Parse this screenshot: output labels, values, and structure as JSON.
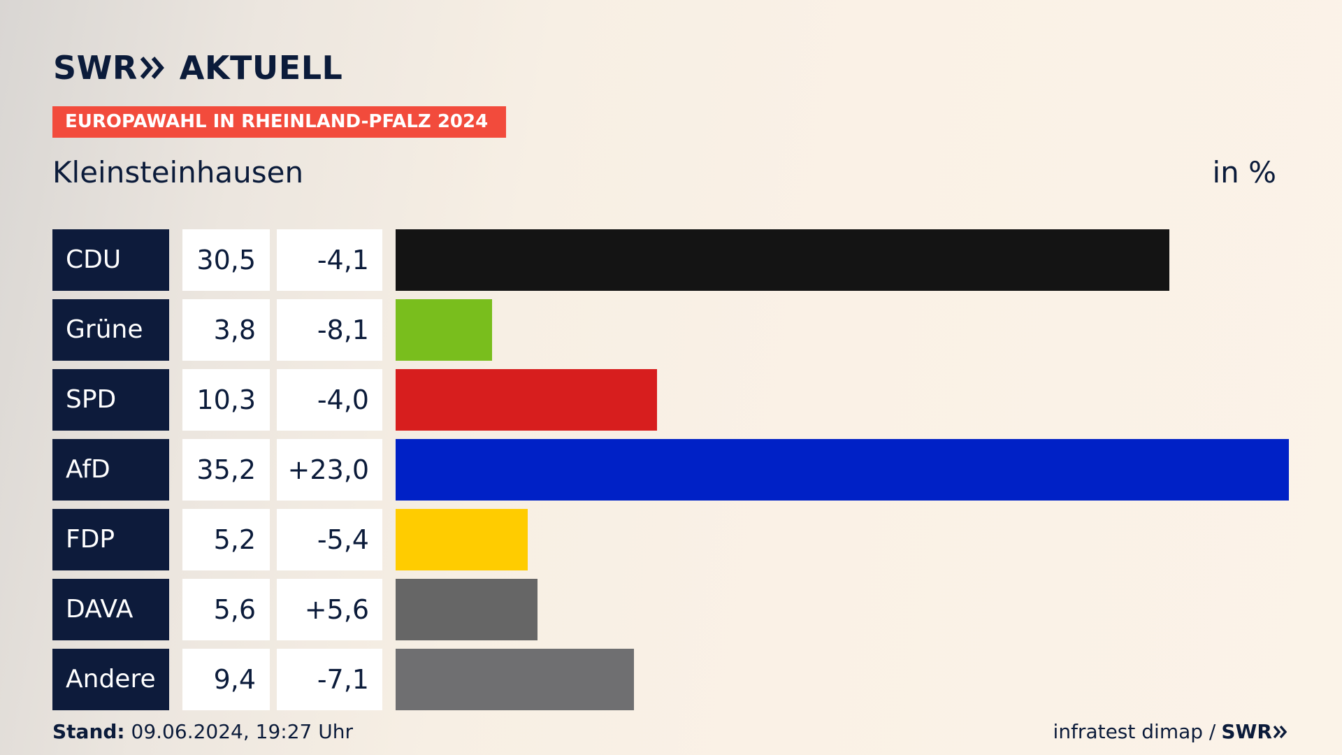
{
  "brand": {
    "name_left": "SWR",
    "name_right": "AKTUELL",
    "footer_logo": "SWR"
  },
  "header": {
    "kicker": "EUROPAWAHL IN RHEINLAND-PFALZ 2024",
    "place": "Kleinsteinhausen",
    "unit": "in %"
  },
  "footer": {
    "stand_label": "Stand:",
    "stand_value": "09.06.2024, 19:27 Uhr",
    "source": "infratest dimap /"
  },
  "colors": {
    "kicker": "#f24b3c",
    "party_label_bg": "#0d1b3b",
    "text": "#0b1b3a"
  },
  "chart_data": {
    "type": "bar",
    "orientation": "horizontal",
    "categories": [
      "CDU",
      "Grüne",
      "SPD",
      "AfD",
      "FDP",
      "DAVA",
      "Andere"
    ],
    "values": [
      30.5,
      3.8,
      10.3,
      35.2,
      5.2,
      5.6,
      9.4
    ],
    "value_labels": [
      "30,5",
      "3,8",
      "10,3",
      "35,2",
      "5,2",
      "5,6",
      "9,4"
    ],
    "changes": [
      -4.1,
      -8.1,
      -4.0,
      23.0,
      -5.4,
      5.6,
      -7.1
    ],
    "change_labels": [
      "-4,1",
      "-8,1",
      "-4,0",
      "+23,0",
      "-5,4",
      "+5,6",
      "-7,1"
    ],
    "colors": [
      "#141414",
      "#79be1d",
      "#d71e1e",
      "#0021c6",
      "#ffcc00",
      "#666666",
      "#6f6f71"
    ],
    "title": "Kleinsteinhausen",
    "xlabel": "",
    "ylabel": "",
    "unit": "in %",
    "xlim": [
      0,
      35.2
    ],
    "grid": false,
    "legend": "none"
  }
}
